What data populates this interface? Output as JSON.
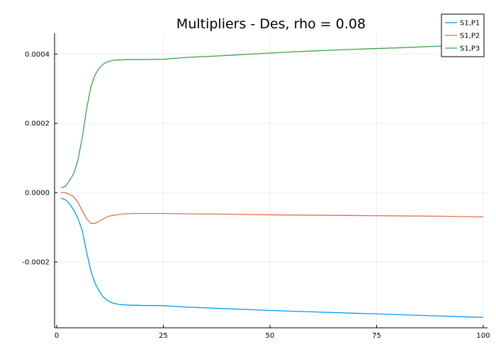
{
  "chart_data": {
    "type": "line",
    "title": "Multipliers - Des, rho = 0.08",
    "xlabel": "",
    "ylabel": "",
    "xlim": [
      -0.5,
      101
    ],
    "ylim": [
      -0.00039,
      0.00046
    ],
    "xticks": [
      0,
      25,
      50,
      75,
      100
    ],
    "xtick_labels": [
      "0",
      "25",
      "50",
      "75",
      "100"
    ],
    "yticks": [
      -0.0002,
      0.0,
      0.0002,
      0.0004
    ],
    "ytick_labels": [
      "-0.0002",
      "0.0000",
      "0.0002",
      "0.0004"
    ],
    "grid": true,
    "legend_position": "top-right",
    "x": [
      1,
      2,
      3,
      4,
      5,
      6,
      7,
      8,
      9,
      10,
      11,
      12,
      13,
      14,
      15,
      16,
      17,
      18,
      19,
      20,
      25,
      30,
      40,
      50,
      60,
      70,
      80,
      90,
      100
    ],
    "series": [
      {
        "name": "S1,P1",
        "color": "#009AFA",
        "values": [
          -1.6e-05,
          -2e-05,
          -3.2e-05,
          -5e-05,
          -7.5e-05,
          -0.00011,
          -0.00017,
          -0.000225,
          -0.000262,
          -0.000285,
          -0.000302,
          -0.000312,
          -0.000318,
          -0.000321,
          -0.000323,
          -0.000324,
          -0.0003245,
          -0.000325,
          -0.000325,
          -0.0003255,
          -0.000326,
          -0.00033,
          -0.000335,
          -0.00034,
          -0.000344,
          -0.000348,
          -0.000352,
          -0.000356,
          -0.00036
        ]
      },
      {
        "name": "S1,P2",
        "color": "#E36F47",
        "values": [
          0.0,
          0.0,
          -5e-06,
          -1.2e-05,
          -2.8e-05,
          -5.2e-05,
          -7.5e-05,
          -8.8e-05,
          -8.9e-05,
          -8.2e-05,
          -7.5e-05,
          -6.9e-05,
          -6.6e-05,
          -6.4e-05,
          -6.2e-05,
          -6.1e-05,
          -6.05e-05,
          -6e-05,
          -6e-05,
          -6e-05,
          -6e-05,
          -6.1e-05,
          -6.2e-05,
          -6.4e-05,
          -6.5e-05,
          -6.6e-05,
          -6.7e-05,
          -6.8e-05,
          -7e-05
        ]
      },
      {
        "name": "S1,P3",
        "color": "#3EA44E",
        "values": [
          1.4e-05,
          1.8e-05,
          3.5e-05,
          5.5e-05,
          9.5e-05,
          0.00016,
          0.00024,
          0.000305,
          0.00034,
          0.00036,
          0.000372,
          0.000378,
          0.000381,
          0.000383,
          0.000383,
          0.000384,
          0.000384,
          0.000384,
          0.000384,
          0.000384,
          0.000385,
          0.00039,
          0.000396,
          0.000403,
          0.000409,
          0.000414,
          0.000418,
          0.000423,
          0.000428
        ]
      }
    ]
  }
}
